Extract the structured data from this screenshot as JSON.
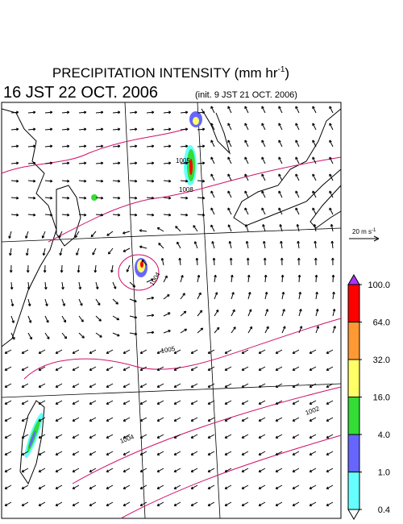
{
  "title": {
    "text": "PRECIPITATION INTENSITY (mm hr",
    "superscript": "-1",
    "close": ")"
  },
  "valid_time": "16 JST 22 OCT. 2006",
  "init_time": "(init. 9 JST 21 OCT. 2006)",
  "vector_scale": {
    "text": "20 m s",
    "superscript": "-1"
  },
  "colorbar": {
    "levels": [
      {
        "value": 100,
        "label": "100.0"
      },
      {
        "value": 64,
        "label": "64.0"
      },
      {
        "value": 32,
        "label": "32.0"
      },
      {
        "value": 16,
        "label": "16.0"
      },
      {
        "value": 4,
        "label": "4.0"
      },
      {
        "value": 1,
        "label": "1.0"
      },
      {
        "value": 0.4,
        "label": "0.4"
      }
    ],
    "colors": [
      "#ff0000",
      "#ff9933",
      "#ffff66",
      "#33dd33",
      "#6666ff",
      "#66ffff"
    ],
    "over_color": "#aa33ff",
    "under_color": "#ffffff"
  },
  "isobar_labels": [
    "1005",
    "1008",
    "1004",
    "1005",
    "1002",
    "1004"
  ]
}
